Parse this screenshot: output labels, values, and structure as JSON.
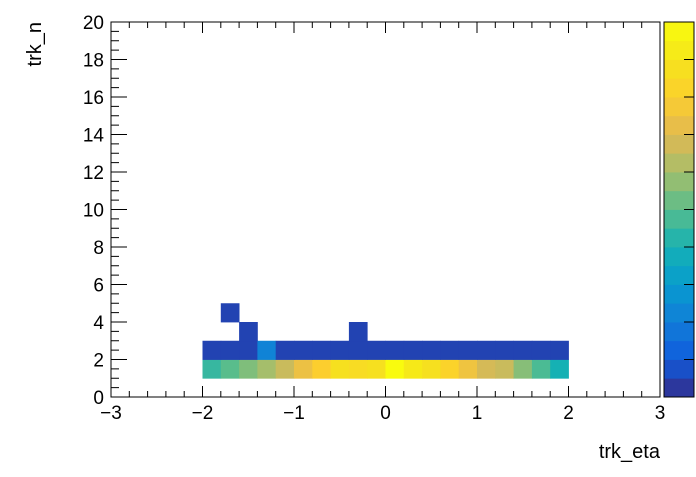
{
  "chart_data": {
    "type": "heatmap",
    "title": "",
    "xlabel": "trk_eta",
    "ylabel": "trk_n",
    "xlim": [
      -3,
      3
    ],
    "ylim": [
      0,
      20
    ],
    "x_ticks": [
      "−3",
      "−2",
      "−1",
      "0",
      "1",
      "2",
      "3"
    ],
    "y_ticks": [
      "0",
      "2",
      "4",
      "6",
      "8",
      "10",
      "12",
      "14",
      "16",
      "18",
      "20"
    ],
    "bin_width_x": 0.2,
    "bin_height_y": 1,
    "colormap": "parula",
    "colorbar": true,
    "cells": [
      {
        "x": -2.0,
        "y": 1,
        "value": 0.45
      },
      {
        "x": -1.8,
        "y": 1,
        "value": 0.5
      },
      {
        "x": -1.6,
        "y": 1,
        "value": 0.55
      },
      {
        "x": -1.4,
        "y": 1,
        "value": 0.6
      },
      {
        "x": -1.2,
        "y": 1,
        "value": 0.66
      },
      {
        "x": -1.0,
        "y": 1,
        "value": 0.74
      },
      {
        "x": -0.8,
        "y": 1,
        "value": 0.8
      },
      {
        "x": -0.6,
        "y": 1,
        "value": 0.88
      },
      {
        "x": -0.4,
        "y": 1,
        "value": 0.86
      },
      {
        "x": -0.2,
        "y": 1,
        "value": 0.88
      },
      {
        "x": 0.0,
        "y": 1,
        "value": 1.0
      },
      {
        "x": 0.2,
        "y": 1,
        "value": 0.92
      },
      {
        "x": 0.4,
        "y": 1,
        "value": 0.88
      },
      {
        "x": 0.6,
        "y": 1,
        "value": 0.82
      },
      {
        "x": 0.8,
        "y": 1,
        "value": 0.75
      },
      {
        "x": 1.0,
        "y": 1,
        "value": 0.68
      },
      {
        "x": 1.2,
        "y": 1,
        "value": 0.66
      },
      {
        "x": 1.4,
        "y": 1,
        "value": 0.56
      },
      {
        "x": 1.6,
        "y": 1,
        "value": 0.48
      },
      {
        "x": 1.8,
        "y": 1,
        "value": 0.4
      },
      {
        "x": -2.0,
        "y": 2,
        "value": 0.05
      },
      {
        "x": -1.8,
        "y": 2,
        "value": 0.05
      },
      {
        "x": -1.6,
        "y": 2,
        "value": 0.05
      },
      {
        "x": -1.4,
        "y": 2,
        "value": 0.22
      },
      {
        "x": -1.2,
        "y": 2,
        "value": 0.05
      },
      {
        "x": -1.0,
        "y": 2,
        "value": 0.05
      },
      {
        "x": -0.8,
        "y": 2,
        "value": 0.05
      },
      {
        "x": -0.6,
        "y": 2,
        "value": 0.05
      },
      {
        "x": -0.4,
        "y": 2,
        "value": 0.05
      },
      {
        "x": -0.2,
        "y": 2,
        "value": 0.05
      },
      {
        "x": 0.0,
        "y": 2,
        "value": 0.05
      },
      {
        "x": 0.2,
        "y": 2,
        "value": 0.05
      },
      {
        "x": 0.4,
        "y": 2,
        "value": 0.05
      },
      {
        "x": 0.6,
        "y": 2,
        "value": 0.05
      },
      {
        "x": 0.8,
        "y": 2,
        "value": 0.05
      },
      {
        "x": 1.0,
        "y": 2,
        "value": 0.05
      },
      {
        "x": 1.2,
        "y": 2,
        "value": 0.05
      },
      {
        "x": 1.4,
        "y": 2,
        "value": 0.05
      },
      {
        "x": 1.6,
        "y": 2,
        "value": 0.05
      },
      {
        "x": 1.8,
        "y": 2,
        "value": 0.05
      },
      {
        "x": -1.6,
        "y": 3,
        "value": 0.05
      },
      {
        "x": -0.4,
        "y": 3,
        "value": 0.05
      },
      {
        "x": -1.8,
        "y": 4,
        "value": 0.05
      }
    ],
    "colors": {
      "axis": "#000000",
      "background": "#ffffff"
    }
  }
}
